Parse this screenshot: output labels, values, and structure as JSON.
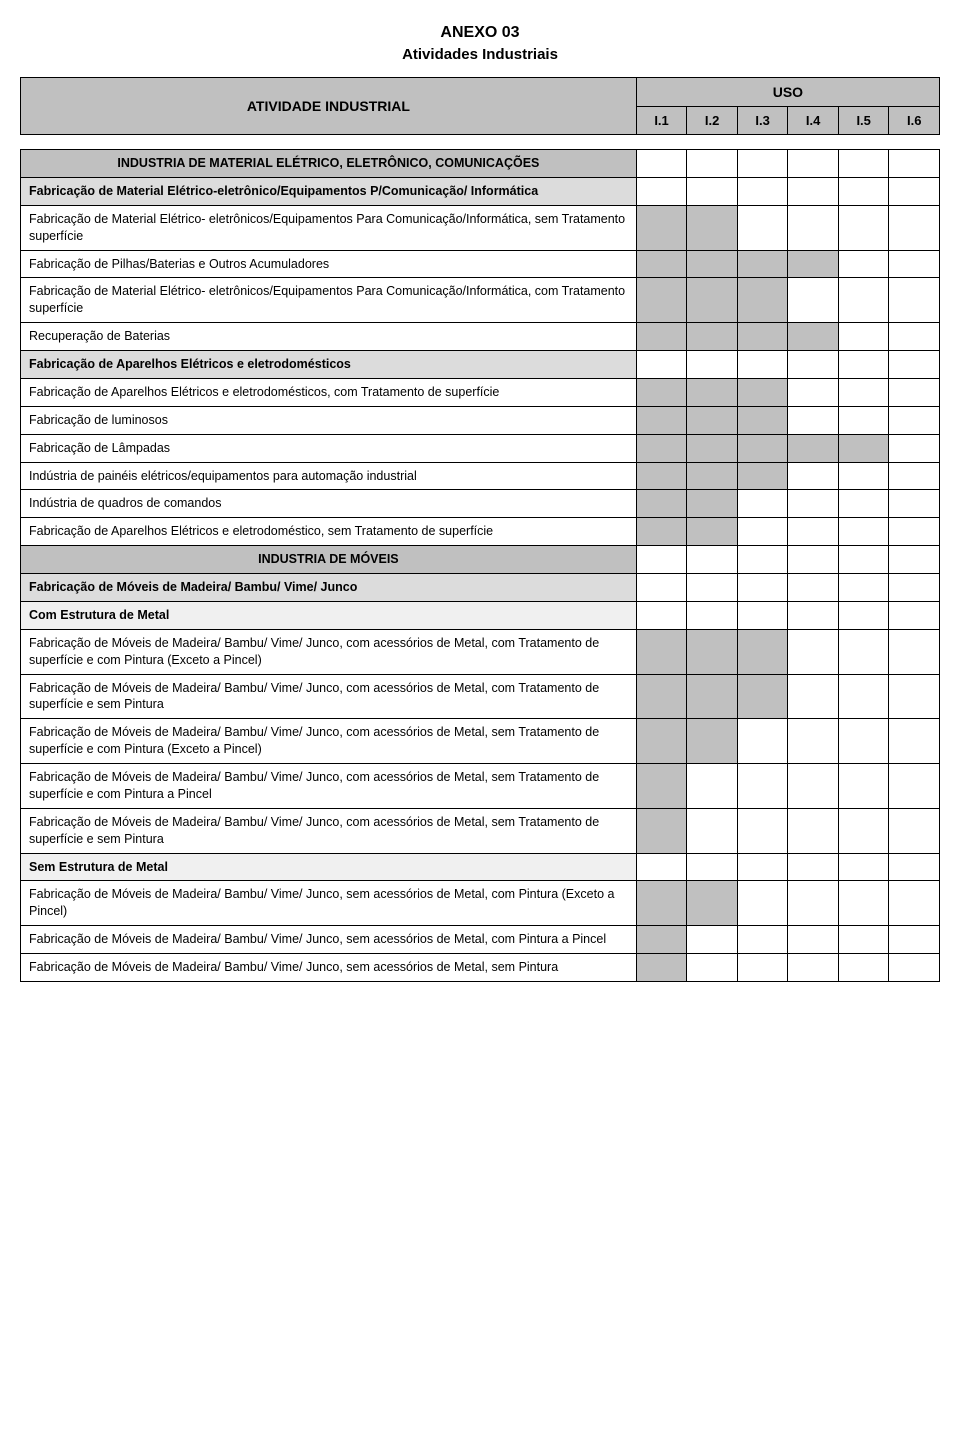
{
  "docTitle": "ANEXO 03",
  "docSubtitle": "Atividades Industriais",
  "header": {
    "label": "ATIVIDADE INDUSTRIAL",
    "uso": "USO",
    "cols": [
      "I.1",
      "I.2",
      "I.3",
      "I.4",
      "I.5",
      "I.6"
    ]
  },
  "colors": {
    "sectionDark": "#c0c0c0",
    "sectionMid": "#dcdcdc",
    "sectionLight": "#f0f0f0",
    "shadedCell": "#c0c0c0",
    "border": "#000000",
    "bg": "#ffffff"
  },
  "rows": [
    {
      "type": "section-dark-center",
      "label": "INDUSTRIA DE MATERIAL ELÉTRICO, ELETRÔNICO, COMUNICAÇÕES",
      "cells": [
        0,
        0,
        0,
        0,
        0,
        0
      ]
    },
    {
      "type": "section-mid",
      "label": "Fabricação de Material Elétrico-eletrônico/Equipamentos P/Comunicação/ Informática",
      "cells": [
        0,
        0,
        0,
        0,
        0,
        0
      ]
    },
    {
      "type": "row",
      "label": "Fabricação de Material Elétrico- eletrônicos/Equipamentos Para Comunicação/Informática, sem Tratamento superfície",
      "cells": [
        1,
        1,
        0,
        0,
        0,
        0
      ]
    },
    {
      "type": "row",
      "label": "Fabricação de Pilhas/Baterias e Outros Acumuladores",
      "cells": [
        1,
        1,
        1,
        1,
        0,
        0
      ]
    },
    {
      "type": "row",
      "label": "Fabricação de Material Elétrico- eletrônicos/Equipamentos Para Comunicação/Informática, com Tratamento superfície",
      "cells": [
        1,
        1,
        1,
        0,
        0,
        0
      ]
    },
    {
      "type": "row",
      "label": "Recuperação de Baterias",
      "cells": [
        1,
        1,
        1,
        1,
        0,
        0
      ]
    },
    {
      "type": "section-mid",
      "label": "Fabricação de Aparelhos Elétricos e eletrodomésticos",
      "cells": [
        0,
        0,
        0,
        0,
        0,
        0
      ]
    },
    {
      "type": "row",
      "label": "Fabricação de Aparelhos Elétricos e eletrodomésticos, com Tratamento de superfície",
      "cells": [
        1,
        1,
        1,
        0,
        0,
        0
      ]
    },
    {
      "type": "row",
      "label": "Fabricação de luminosos",
      "cells": [
        1,
        1,
        1,
        0,
        0,
        0
      ]
    },
    {
      "type": "row",
      "label": "Fabricação de Lâmpadas",
      "cells": [
        1,
        1,
        1,
        1,
        1,
        0
      ]
    },
    {
      "type": "row",
      "label": "Indústria de painéis elétricos/equipamentos para automação industrial",
      "cells": [
        1,
        1,
        1,
        0,
        0,
        0
      ]
    },
    {
      "type": "row",
      "label": "Indústria de quadros de comandos",
      "cells": [
        1,
        1,
        0,
        0,
        0,
        0
      ]
    },
    {
      "type": "row",
      "label": "Fabricação de Aparelhos Elétricos e eletrodoméstico, sem Tratamento de superfície",
      "cells": [
        1,
        1,
        0,
        0,
        0,
        0
      ]
    },
    {
      "type": "section-dark-center",
      "label": "INDUSTRIA DE MÓVEIS",
      "cells": [
        0,
        0,
        0,
        0,
        0,
        0
      ]
    },
    {
      "type": "section-mid",
      "label": "Fabricação de Móveis de Madeira/ Bambu/ Vime/ Junco",
      "cells": [
        0,
        0,
        0,
        0,
        0,
        0
      ]
    },
    {
      "type": "section-light",
      "label": "Com Estrutura de Metal",
      "cells": [
        0,
        0,
        0,
        0,
        0,
        0
      ]
    },
    {
      "type": "row",
      "label": "Fabricação de Móveis de Madeira/ Bambu/ Vime/ Junco, com acessórios de Metal, com Tratamento de superfície e com Pintura (Exceto a Pincel)",
      "cells": [
        1,
        1,
        1,
        0,
        0,
        0
      ]
    },
    {
      "type": "row",
      "label": "Fabricação de Móveis de Madeira/ Bambu/ Vime/ Junco, com acessórios de Metal, com Tratamento de superfície e sem Pintura",
      "cells": [
        1,
        1,
        1,
        0,
        0,
        0
      ]
    },
    {
      "type": "row",
      "label": "Fabricação de Móveis de Madeira/ Bambu/ Vime/ Junco, com acessórios de Metal, sem Tratamento de superfície e com Pintura (Exceto a Pincel)",
      "cells": [
        1,
        1,
        0,
        0,
        0,
        0
      ]
    },
    {
      "type": "row",
      "label": "Fabricação de Móveis de Madeira/ Bambu/ Vime/ Junco, com acessórios de Metal, sem Tratamento de superfície e com Pintura a Pincel",
      "cells": [
        1,
        0,
        0,
        0,
        0,
        0
      ]
    },
    {
      "type": "row",
      "label": "Fabricação de Móveis de Madeira/ Bambu/ Vime/ Junco, com acessórios de Metal, sem Tratamento de superfície e sem Pintura",
      "cells": [
        1,
        0,
        0,
        0,
        0,
        0
      ]
    },
    {
      "type": "section-light",
      "label": "Sem Estrutura de Metal",
      "cells": [
        0,
        0,
        0,
        0,
        0,
        0
      ]
    },
    {
      "type": "row",
      "label": "Fabricação de Móveis de Madeira/ Bambu/ Vime/ Junco, sem acessórios de Metal, com Pintura (Exceto a Pincel)",
      "cells": [
        1,
        1,
        0,
        0,
        0,
        0
      ]
    },
    {
      "type": "row",
      "label": "Fabricação de Móveis de Madeira/ Bambu/ Vime/ Junco, sem acessórios de Metal, com Pintura a Pincel",
      "cells": [
        1,
        0,
        0,
        0,
        0,
        0
      ]
    },
    {
      "type": "row",
      "label": "Fabricação de Móveis de Madeira/ Bambu/ Vime/ Junco, sem acessórios de Metal, sem Pintura",
      "cells": [
        1,
        0,
        0,
        0,
        0,
        0
      ]
    }
  ]
}
